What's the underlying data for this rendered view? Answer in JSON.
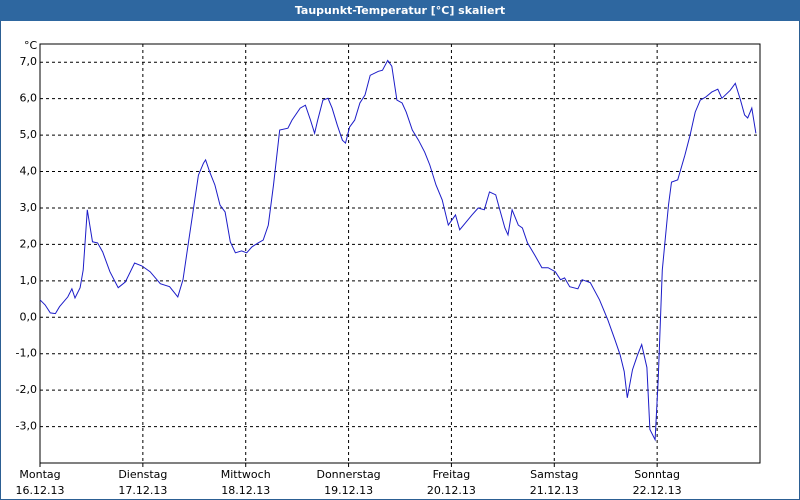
{
  "chart_data": {
    "type": "line",
    "title": "Taupunkt-Temperatur [°C] skaliert",
    "y_unit": "°C",
    "x": [
      0.0,
      0.05,
      0.1,
      0.15,
      0.19,
      0.27,
      0.31,
      0.34,
      0.39,
      0.42,
      0.46,
      0.51,
      0.56,
      0.61,
      0.68,
      0.76,
      0.83,
      0.92,
      0.99,
      1.07,
      1.17,
      1.26,
      1.34,
      1.39,
      1.44,
      1.49,
      1.54,
      1.59,
      1.61,
      1.65,
      1.7,
      1.75,
      1.8,
      1.85,
      1.9,
      1.96,
      2.01,
      2.06,
      2.12,
      2.17,
      2.22,
      2.27,
      2.33,
      2.41,
      2.45,
      2.53,
      2.58,
      2.63,
      2.67,
      2.7,
      2.75,
      2.8,
      2.84,
      2.89,
      2.94,
      2.97,
      3.01,
      3.06,
      3.11,
      3.16,
      3.21,
      3.29,
      3.33,
      3.38,
      3.42,
      3.47,
      3.52,
      3.56,
      3.62,
      3.68,
      3.74,
      3.79,
      3.85,
      3.91,
      3.97,
      4.04,
      4.08,
      4.2,
      4.26,
      4.32,
      4.37,
      4.43,
      4.47,
      4.52,
      4.55,
      4.59,
      4.65,
      4.69,
      4.74,
      4.81,
      4.88,
      4.94,
      5.01,
      5.06,
      5.1,
      5.15,
      5.23,
      5.27,
      5.35,
      5.44,
      5.52,
      5.59,
      5.64,
      5.68,
      5.71,
      5.76,
      5.81,
      5.85,
      5.9,
      5.93,
      5.98,
      6.01,
      6.05,
      6.11,
      6.14,
      6.2,
      6.27,
      6.32,
      6.37,
      6.42,
      6.47,
      6.53,
      6.59,
      6.63,
      6.71,
      6.76,
      6.81,
      6.85,
      6.88,
      6.92,
      6.96
    ],
    "series": [
      {
        "color": "#1c1cc8",
        "values": [
          0.48,
          0.34,
          0.12,
          0.1,
          0.29,
          0.56,
          0.78,
          0.53,
          0.81,
          1.3,
          2.95,
          2.07,
          2.04,
          1.79,
          1.25,
          0.81,
          0.97,
          1.49,
          1.41,
          1.25,
          0.92,
          0.84,
          0.56,
          1.03,
          1.99,
          2.95,
          3.9,
          4.23,
          4.32,
          3.99,
          3.63,
          3.08,
          2.89,
          2.07,
          1.77,
          1.82,
          1.77,
          1.93,
          2.04,
          2.12,
          2.53,
          3.63,
          5.14,
          5.19,
          5.41,
          5.74,
          5.82,
          5.41,
          5.05,
          5.41,
          5.96,
          6.01,
          5.74,
          5.27,
          4.86,
          4.78,
          5.22,
          5.41,
          5.88,
          6.1,
          6.64,
          6.75,
          6.78,
          7.05,
          6.89,
          5.96,
          5.88,
          5.63,
          5.14,
          4.86,
          4.53,
          4.18,
          3.63,
          3.22,
          2.53,
          2.81,
          2.4,
          2.81,
          3.0,
          2.95,
          3.44,
          3.36,
          2.95,
          2.45,
          2.26,
          2.95,
          2.53,
          2.45,
          2.04,
          1.71,
          1.36,
          1.36,
          1.25,
          1.03,
          1.08,
          0.84,
          0.78,
          1.03,
          0.95,
          0.48,
          -0.07,
          -0.62,
          -1.03,
          -1.49,
          -2.21,
          -1.44,
          -1.03,
          -0.75,
          -1.38,
          -3.08,
          -3.36,
          -1.71,
          1.3,
          3.08,
          3.71,
          3.77,
          4.45,
          5.0,
          5.63,
          5.96,
          6.04,
          6.18,
          6.26,
          6.01,
          6.23,
          6.42,
          5.96,
          5.55,
          5.47,
          5.74,
          5.05
        ]
      }
    ],
    "xlim": [
      0,
      7
    ],
    "xticks": [
      {
        "value": 0,
        "label": "Montag"
      },
      {
        "value": 1,
        "label": "Dienstag"
      },
      {
        "value": 2,
        "label": "Mittwoch"
      },
      {
        "value": 3,
        "label": "Donnerstag"
      },
      {
        "value": 4,
        "label": "Freitag"
      },
      {
        "value": 5,
        "label": "Samstag"
      },
      {
        "value": 6,
        "label": "Sonntag"
      }
    ],
    "xtick_dates": [
      "16.12.13",
      "17.12.13",
      "18.12.13",
      "19.12.13",
      "20.12.13",
      "21.12.13",
      "22.12.13"
    ],
    "ylim": [
      -4,
      7.5
    ],
    "yticks": [
      {
        "value": -3,
        "label": "-3,0"
      },
      {
        "value": -2,
        "label": "-2,0"
      },
      {
        "value": -1,
        "label": "-1,0"
      },
      {
        "value": 0,
        "label": "0,0"
      },
      {
        "value": 1,
        "label": "1,0"
      },
      {
        "value": 2,
        "label": "2,0"
      },
      {
        "value": 3,
        "label": "3,0"
      },
      {
        "value": 4,
        "label": "4,0"
      },
      {
        "value": 5,
        "label": "5,0"
      },
      {
        "value": 6,
        "label": "6,0"
      },
      {
        "value": 7,
        "label": "7,0"
      }
    ],
    "grid": true
  }
}
